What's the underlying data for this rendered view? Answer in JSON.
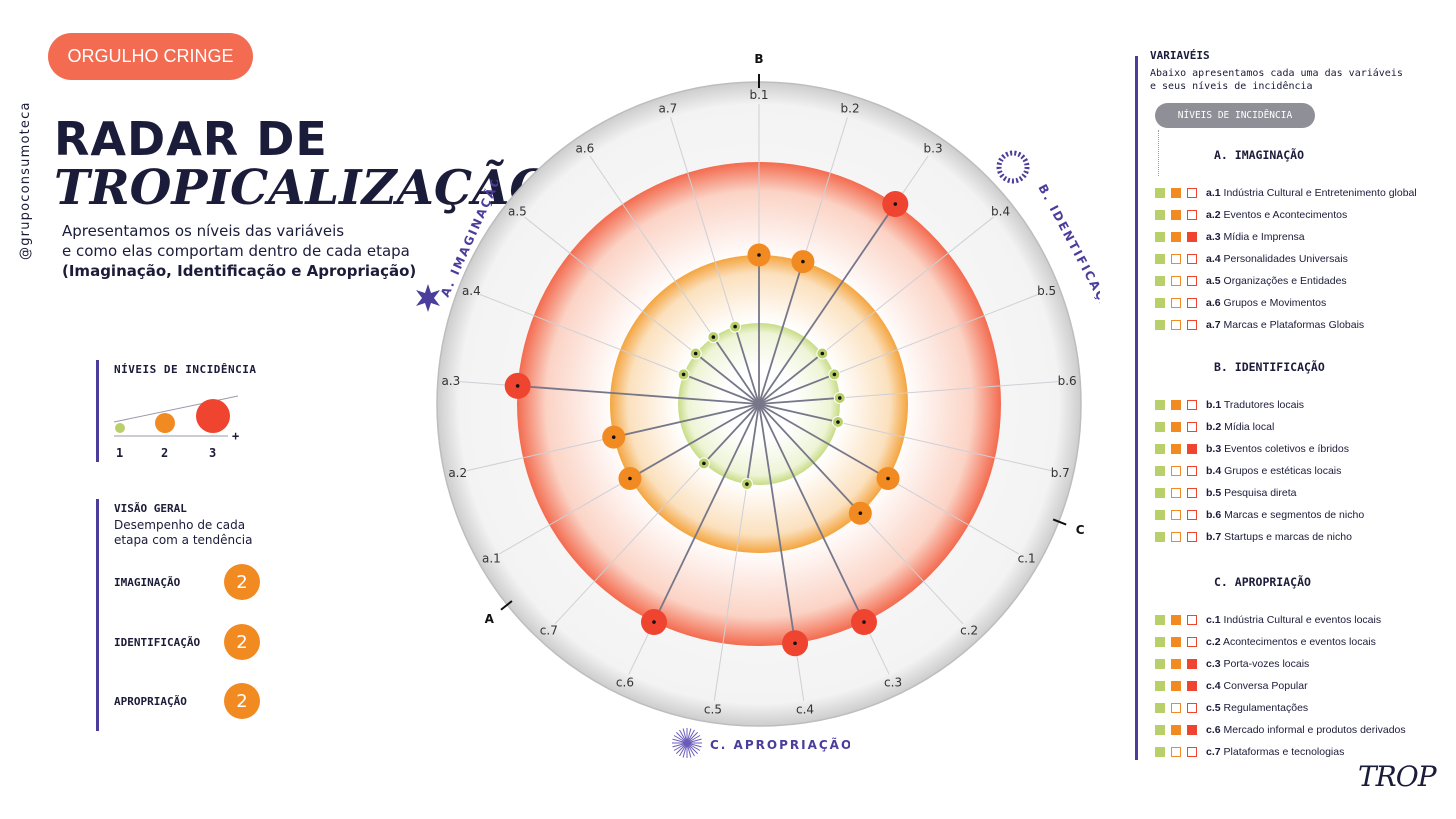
{
  "header": {
    "tag": "ORGULHO CRINGE",
    "handle": "@grupoconsumoteca",
    "title_line1": "RADAR DE",
    "title_line2": "TROPICALIZAÇÃO",
    "desc_line1": "Apresentamos os níveis das variáveis",
    "desc_line2": "e como elas comportam dentro de cada etapa",
    "desc_line3": "(Imaginação, Identificação e Apropriação)"
  },
  "levels_legend": {
    "title": "NÍVEIS DE INCIDÊNCIA",
    "labels": [
      "1",
      "2",
      "3"
    ],
    "plus": "+"
  },
  "overview": {
    "title": "VISÃO GERAL",
    "subtitle": "Desempenho de cada etapa com a tendência",
    "items": [
      {
        "label": "IMAGINAÇÃO",
        "value": "2"
      },
      {
        "label": "IDENTIFICAÇÃO",
        "value": "2"
      },
      {
        "label": "APROPRIAÇÃO",
        "value": "2"
      }
    ]
  },
  "colors": {
    "level1": "#b8cf6a",
    "level2": "#f28a22",
    "level3": "#ee4430",
    "accent": "#4a3d9b"
  },
  "chart_data": {
    "type": "radar",
    "stages": [
      {
        "letter": "A",
        "name": "A. IMAGINAÇÃO"
      },
      {
        "letter": "B",
        "name": "B. IDENTIFICAÇÃO"
      },
      {
        "letter": "C",
        "name": "C. APROPRIAÇÃO"
      }
    ],
    "axes": [
      "b.1",
      "b.2",
      "b.3",
      "b.4",
      "b.5",
      "b.6",
      "b.7",
      "c.1",
      "c.2",
      "c.3",
      "c.4",
      "c.5",
      "c.6",
      "c.7",
      "a.1",
      "a.2",
      "a.3",
      "a.4",
      "a.5",
      "a.6",
      "a.7"
    ],
    "levels": [
      2,
      2,
      3,
      1,
      1,
      1,
      1,
      2,
      2,
      3,
      3,
      1,
      3,
      1,
      2,
      2,
      3,
      1,
      1,
      1,
      1
    ],
    "level_range": [
      1,
      3
    ]
  },
  "variables_panel": {
    "title": "VARIAVÉIS",
    "subtitle": "Abaixo apresentamos cada uma das variáveis e seus níveis de incidência",
    "pill": "NÍVEIS DE INCIDÊNCIA",
    "groups": [
      {
        "title": "A. IMAGINAÇÃO",
        "items": [
          {
            "code": "a.1",
            "label": "Indústria Cultural e Entretenimento global",
            "level": 2
          },
          {
            "code": "a.2",
            "label": "Eventos e Acontecimentos",
            "level": 2
          },
          {
            "code": "a.3",
            "label": "Mídia e Imprensa",
            "level": 3
          },
          {
            "code": "a.4",
            "label": "Personalidades Universais",
            "level": 1
          },
          {
            "code": "a.5",
            "label": "Organizações e Entidades",
            "level": 1
          },
          {
            "code": "a.6",
            "label": "Grupos e Movimentos",
            "level": 1
          },
          {
            "code": "a.7",
            "label": "Marcas e Plataformas Globais",
            "level": 1
          }
        ]
      },
      {
        "title": "B. IDENTIFICAÇÃO",
        "items": [
          {
            "code": "b.1",
            "label": "Tradutores locais",
            "level": 2
          },
          {
            "code": "b.2",
            "label": "Mídia local",
            "level": 2
          },
          {
            "code": "b.3",
            "label": "Eventos coletivos e íbridos",
            "level": 3
          },
          {
            "code": "b.4",
            "label": "Grupos e estéticas locais",
            "level": 1
          },
          {
            "code": "b.5",
            "label": "Pesquisa direta",
            "level": 1
          },
          {
            "code": "b.6",
            "label": "Marcas e segmentos de nicho",
            "level": 1
          },
          {
            "code": "b.7",
            "label": "Startups e marcas de nicho",
            "level": 1
          }
        ]
      },
      {
        "title": "C. APROPRIAÇÃO",
        "items": [
          {
            "code": "c.1",
            "label": "Indústria Cultural e eventos locais",
            "level": 2
          },
          {
            "code": "c.2",
            "label": "Acontecimentos e eventos locais",
            "level": 2
          },
          {
            "code": "c.3",
            "label": "Porta-vozes locais",
            "level": 3
          },
          {
            "code": "c.4",
            "label": "Conversa Popular",
            "level": 3
          },
          {
            "code": "c.5",
            "label": "Regulamentações",
            "level": 1
          },
          {
            "code": "c.6",
            "label": "Mercado informal e produtos derivados",
            "level": 3
          },
          {
            "code": "c.7",
            "label": "Plataformas e tecnologias",
            "level": 1
          }
        ]
      }
    ]
  },
  "logo": "TROP"
}
